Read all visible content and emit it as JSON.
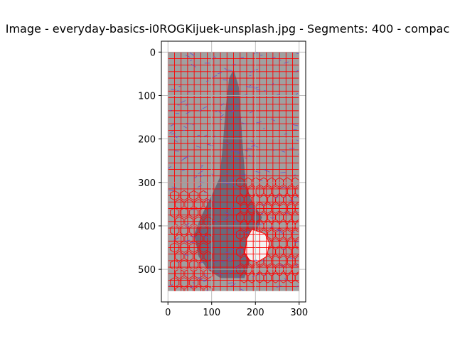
{
  "chart_data": {
    "type": "heatmap",
    "title": "Image - everyday-basics-i0ROGKijuek-unsplash.jpg - Segments: 400 - compac",
    "xlabel": "",
    "ylabel": "",
    "xlim": [
      -15,
      315
    ],
    "ylim": [
      575,
      -25
    ],
    "x_ticks": [
      0,
      100,
      200,
      300
    ],
    "y_ticks": [
      0,
      100,
      200,
      300,
      400,
      500
    ],
    "image_extent": {
      "x": [
        0,
        300
      ],
      "y": [
        0,
        550
      ]
    },
    "grid": true,
    "background_color": "#a0a0a0",
    "segment_boundary_color": "#ff0000",
    "edge_color": "#5a4ad6",
    "object_color": "#6a6a7a",
    "highlight_color": "#f4f4f4",
    "segments_label": "Segments: 400",
    "regular_grid": {
      "cell_width": 15,
      "cell_height": 15
    },
    "object_region": [
      [
        150,
        40
      ],
      [
        162,
        80
      ],
      [
        168,
        170
      ],
      [
        172,
        230
      ],
      [
        178,
        300
      ],
      [
        190,
        340
      ],
      [
        215,
        380
      ],
      [
        200,
        420
      ],
      [
        185,
        490
      ],
      [
        175,
        520
      ],
      [
        120,
        520
      ],
      [
        90,
        500
      ],
      [
        70,
        470
      ],
      [
        60,
        420
      ],
      [
        75,
        380
      ],
      [
        100,
        330
      ],
      [
        118,
        290
      ],
      [
        125,
        220
      ],
      [
        132,
        130
      ],
      [
        140,
        60
      ]
    ],
    "highlight_region": [
      [
        192,
        408
      ],
      [
        222,
        418
      ],
      [
        232,
        440
      ],
      [
        226,
        470
      ],
      [
        204,
        484
      ],
      [
        186,
        478
      ],
      [
        176,
        462
      ],
      [
        180,
        430
      ]
    ]
  }
}
